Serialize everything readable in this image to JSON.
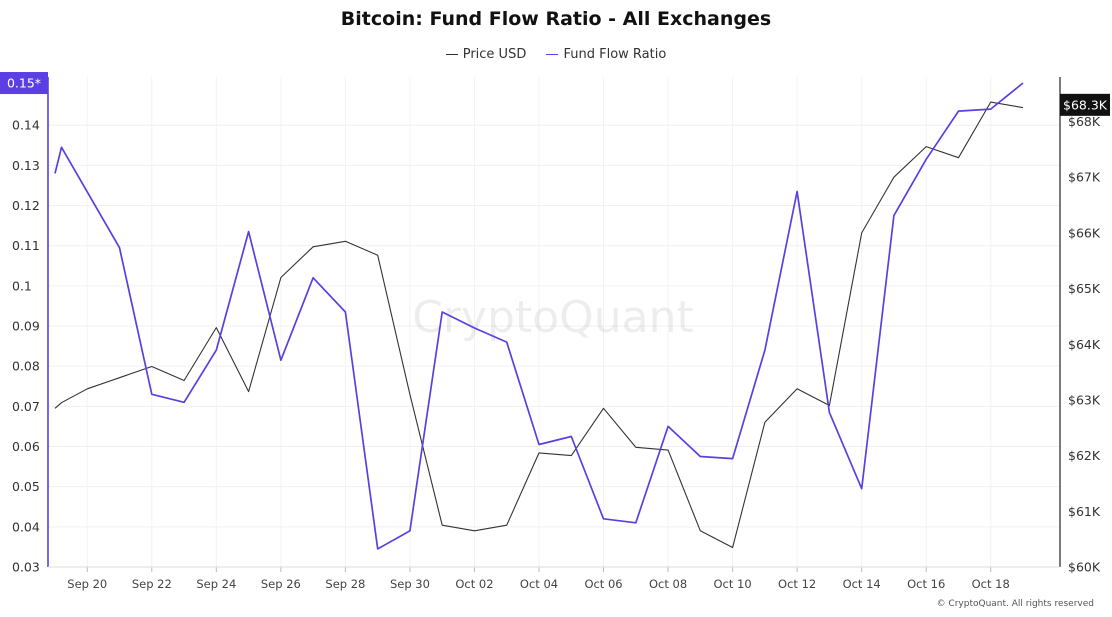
{
  "chart_data": {
    "type": "line",
    "title": "Bitcoin: Fund Flow Ratio - All Exchanges",
    "watermark": "CryptoQuant",
    "footer": "© CryptoQuant. All rights reserved",
    "x_ticks": [
      "Sep 20",
      "Sep 22",
      "Sep 24",
      "Sep 26",
      "Sep 28",
      "Sep 30",
      "Oct 02",
      "Oct 04",
      "Oct 06",
      "Oct 08",
      "Oct 10",
      "Oct 12",
      "Oct 14",
      "Oct 16",
      "Oct 18"
    ],
    "left_axis": {
      "ticks": [
        "0.03",
        "0.04",
        "0.05",
        "0.06",
        "0.07",
        "0.08",
        "0.09",
        "0.1",
        "0.11",
        "0.12",
        "0.13",
        "0.14"
      ],
      "range": [
        0.03,
        0.152
      ],
      "current_label": "0.15*",
      "current_value": 0.1505,
      "color": "#5b3fe4"
    },
    "right_axis": {
      "ticks": [
        "$60K",
        "$61K",
        "$62K",
        "$63K",
        "$64K",
        "$65K",
        "$66K",
        "$67K",
        "$68K"
      ],
      "range_k": [
        60,
        68.8
      ],
      "current_label": "$68.3K",
      "current_value_k": 68.3,
      "color": "#000000"
    },
    "grid": true,
    "legend_position": "top-center",
    "series": [
      {
        "name": "Price USD",
        "axis": "right",
        "color": "#333333",
        "x_day": [
          0,
          0.2,
          1,
          2,
          3,
          4,
          5,
          6,
          7,
          8,
          9,
          10,
          11,
          12,
          13,
          14,
          15,
          16,
          17,
          18,
          19,
          20,
          21,
          22,
          23,
          24,
          25,
          26,
          27,
          28,
          29,
          30
        ],
        "values_k": [
          62.85,
          62.95,
          63.2,
          63.4,
          63.6,
          63.35,
          64.3,
          63.15,
          65.2,
          65.75,
          65.85,
          65.6,
          63.1,
          60.75,
          60.65,
          60.75,
          62.05,
          62.0,
          62.85,
          62.15,
          62.1,
          60.65,
          60.35,
          62.6,
          63.2,
          62.9,
          66.0,
          67.0,
          67.55,
          67.35,
          68.35,
          68.25
        ]
      },
      {
        "name": "Fund Flow Ratio",
        "axis": "left",
        "color": "#5b3fe4",
        "x_day": [
          0,
          0.2,
          2,
          3,
          4,
          5,
          6,
          7,
          8,
          9,
          10,
          11,
          12,
          13,
          14,
          15,
          16,
          17,
          18,
          19,
          20,
          21,
          22,
          23,
          24,
          25,
          26,
          27,
          28,
          29,
          30
        ],
        "values": [
          0.128,
          0.1345,
          0.1095,
          0.073,
          0.071,
          0.084,
          0.1135,
          0.0815,
          0.102,
          0.0935,
          0.0345,
          0.039,
          0.0935,
          0.0895,
          0.086,
          0.0605,
          0.0625,
          0.042,
          0.041,
          0.065,
          0.0575,
          0.057,
          0.084,
          0.1235,
          0.0685,
          0.0495,
          0.1175,
          0.1315,
          0.1435,
          0.144,
          0.1505
        ]
      }
    ]
  }
}
